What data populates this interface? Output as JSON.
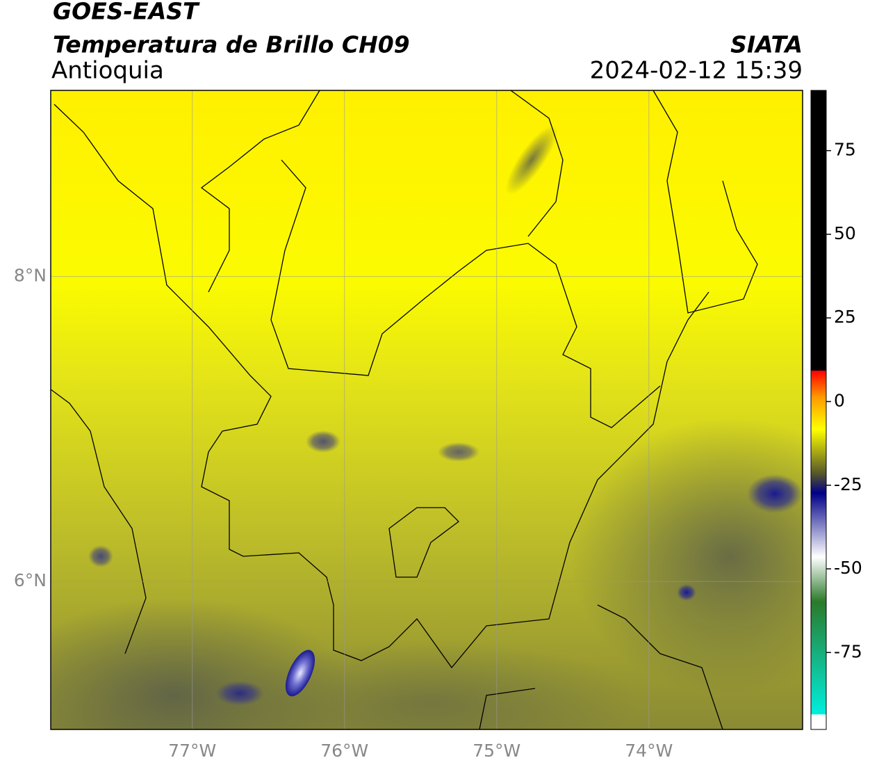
{
  "header": {
    "source": "GOES-EAST",
    "product": "Temperatura de Brillo CH09",
    "region": "Antioquia",
    "agency": "SIATA",
    "datetime": "2024-02-12 15:39"
  },
  "map": {
    "xlim": [
      -77.93,
      -72.99
    ],
    "ylim": [
      5.03,
      9.22
    ],
    "xticks": [
      {
        "value": -77,
        "label": "77°W"
      },
      {
        "value": -76,
        "label": "76°W"
      },
      {
        "value": -75,
        "label": "75°W"
      },
      {
        "value": -74,
        "label": "74°W"
      }
    ],
    "yticks": [
      {
        "value": 6,
        "label": "6°N"
      },
      {
        "value": 8,
        "label": "8°N"
      }
    ],
    "grid": true
  },
  "colorbar": {
    "lim": [
      -98,
      93
    ],
    "ticks": [
      75,
      50,
      25,
      0,
      -25,
      -50,
      -75
    ]
  }
}
